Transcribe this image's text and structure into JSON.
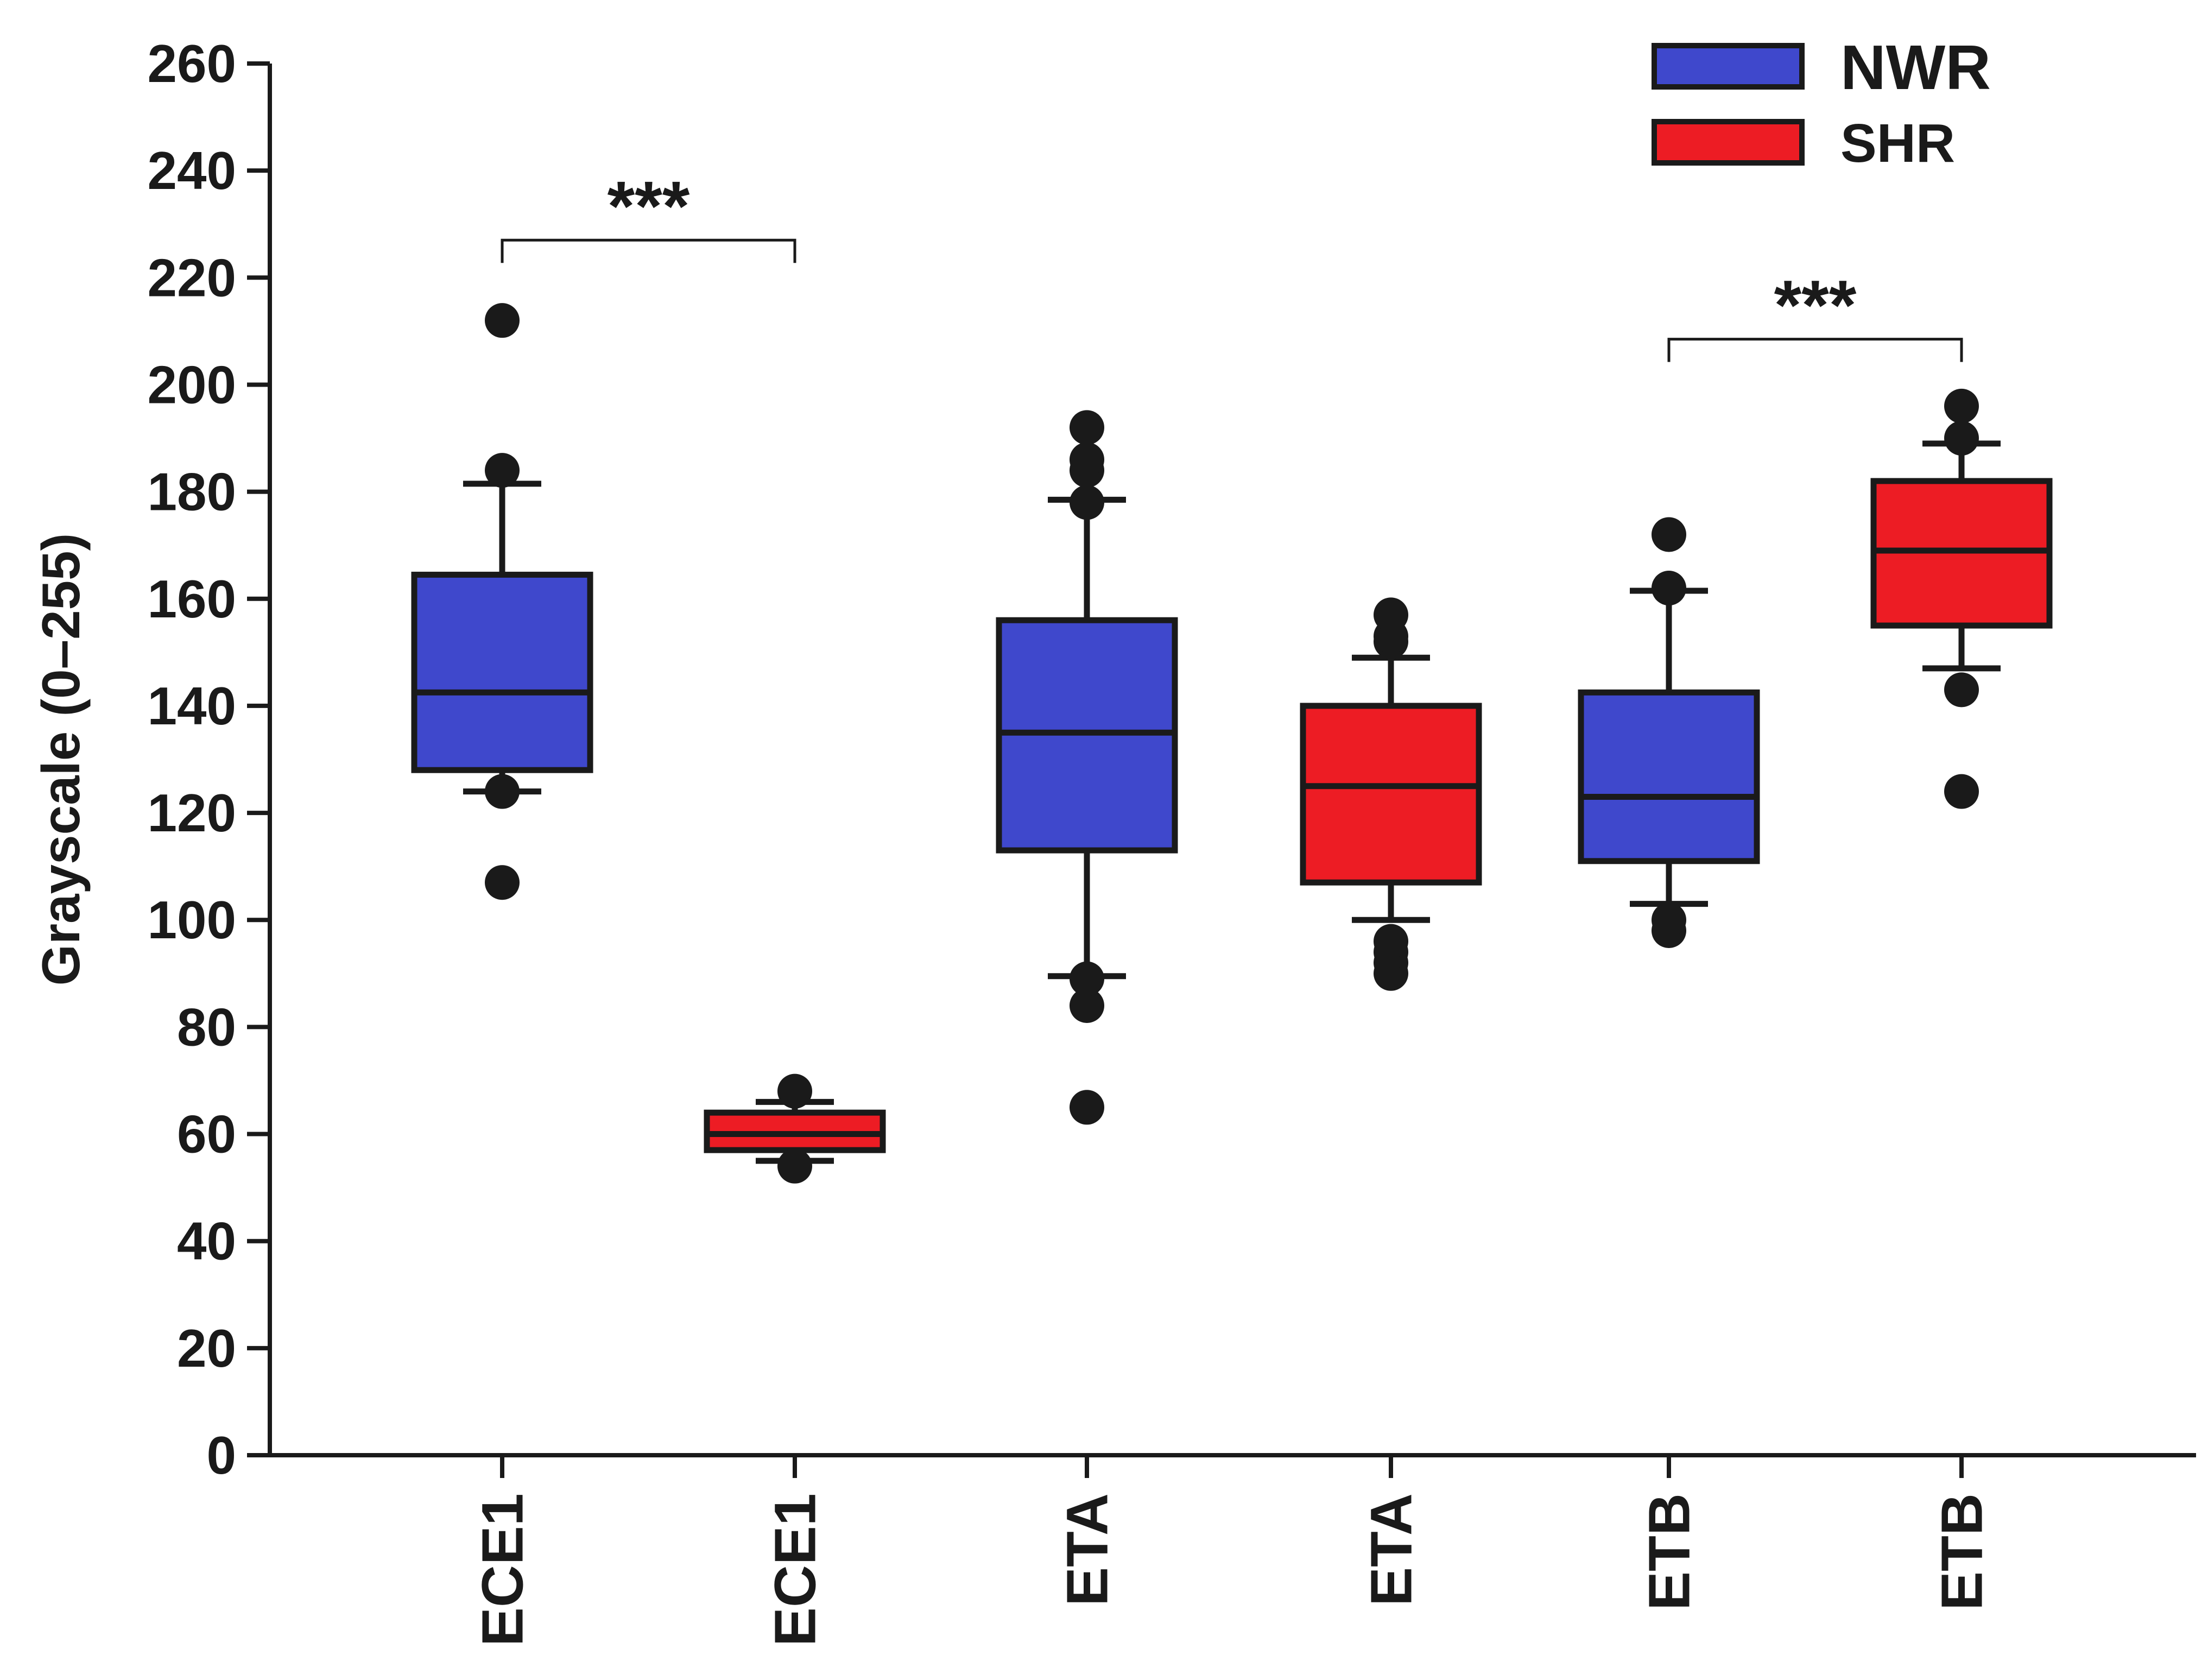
{
  "chart_data": {
    "type": "box",
    "ylabel": "Grayscale (0–255)",
    "ylim": [
      0,
      260
    ],
    "yticks": [
      0,
      20,
      40,
      60,
      80,
      100,
      120,
      140,
      160,
      180,
      200,
      220,
      240,
      260
    ],
    "categories": [
      "ECE1",
      "ECE1",
      "ETA",
      "ETA",
      "ETB",
      "ETB"
    ],
    "legend": {
      "position": "top-right",
      "entries": [
        {
          "name": "NWR",
          "color": "#3f48cc"
        },
        {
          "name": "SHR",
          "color": "#ed1c24"
        }
      ]
    },
    "boxes": [
      {
        "category": "ECE1",
        "group": "NWR",
        "whisker_low": 124,
        "q1": 128,
        "median": 142.5,
        "q3": 164.5,
        "whisker_high": 181.5,
        "outliers": [
          107,
          124,
          184,
          212
        ]
      },
      {
        "category": "ECE1",
        "group": "SHR",
        "whisker_low": 55,
        "q1": 57,
        "median": 60,
        "q3": 64,
        "whisker_high": 66,
        "outliers": [
          54,
          68
        ]
      },
      {
        "category": "ETA",
        "group": "NWR",
        "whisker_low": 89.5,
        "q1": 113,
        "median": 135,
        "q3": 156,
        "whisker_high": 178.5,
        "outliers": [
          65,
          84,
          89,
          178,
          184,
          186,
          192
        ]
      },
      {
        "category": "ETA",
        "group": "SHR",
        "whisker_low": 100,
        "q1": 107,
        "median": 125,
        "q3": 140,
        "whisker_high": 149,
        "outliers": [
          90,
          92,
          94,
          96,
          152,
          153,
          157
        ]
      },
      {
        "category": "ETB",
        "group": "NWR",
        "whisker_low": 103,
        "q1": 111,
        "median": 123,
        "q3": 142.5,
        "whisker_high": 161.5,
        "outliers": [
          98,
          100,
          162,
          172
        ]
      },
      {
        "category": "ETB",
        "group": "SHR",
        "whisker_low": 147,
        "q1": 155,
        "median": 169,
        "q3": 182,
        "whisker_high": 189,
        "outliers": [
          124,
          143,
          190,
          196
        ]
      }
    ],
    "annotations": [
      {
        "text": "***",
        "from_index": 0,
        "to_index": 1,
        "bracket_y": 227
      },
      {
        "text": "***",
        "from_index": 4,
        "to_index": 5,
        "bracket_y": 208.5
      }
    ]
  }
}
